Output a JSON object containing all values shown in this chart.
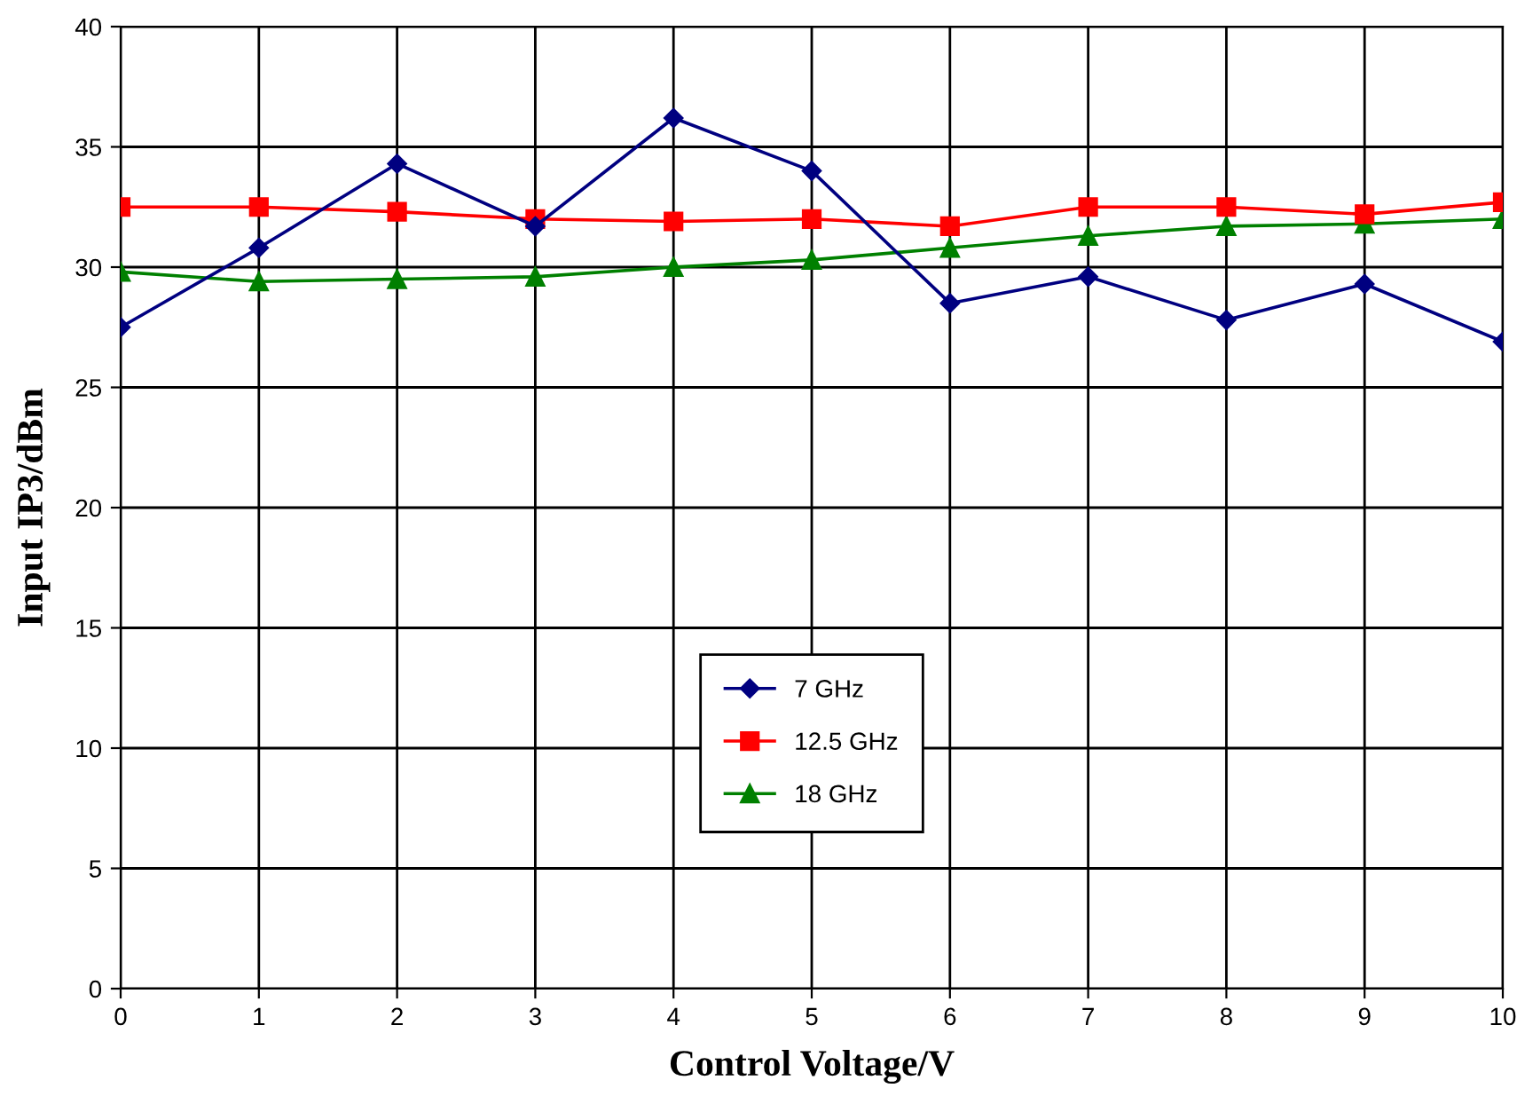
{
  "chart_data": {
    "type": "line",
    "xlabel": "Control Voltage/V",
    "ylabel": "Input IP3/dBm",
    "x": [
      0,
      1,
      2,
      3,
      4,
      5,
      6,
      7,
      8,
      9,
      10
    ],
    "series": [
      {
        "name": "7 GHz",
        "color": "#000080",
        "marker": "diamond",
        "values": [
          27.5,
          30.8,
          34.3,
          31.7,
          36.2,
          34.0,
          28.5,
          29.6,
          27.8,
          29.3,
          26.9
        ]
      },
      {
        "name": "12.5 GHz",
        "color": "#ff0000",
        "marker": "square",
        "values": [
          32.5,
          32.5,
          32.3,
          32.0,
          31.9,
          32.0,
          31.7,
          32.5,
          32.5,
          32.2,
          32.7
        ]
      },
      {
        "name": "18 GHz",
        "color": "#008000",
        "marker": "triangle",
        "values": [
          29.8,
          29.4,
          29.5,
          29.6,
          30.0,
          30.3,
          30.8,
          31.3,
          31.7,
          31.8,
          32.0
        ]
      }
    ],
    "xlim": [
      0,
      10
    ],
    "xticks": [
      0,
      1,
      2,
      3,
      4,
      5,
      6,
      7,
      8,
      9,
      10
    ],
    "ylim": [
      0,
      40
    ],
    "yticks": [
      0,
      5,
      10,
      15,
      20,
      25,
      30,
      35,
      40
    ],
    "grid": true,
    "legend": "bottom",
    "line_style": "solid"
  }
}
